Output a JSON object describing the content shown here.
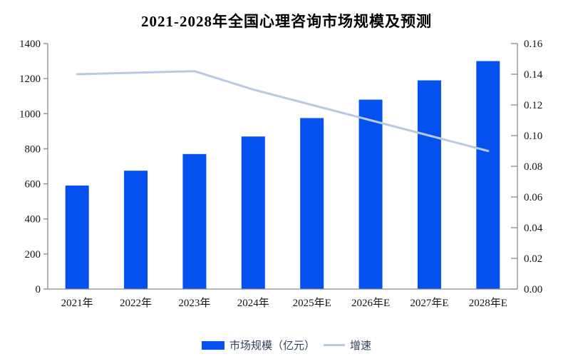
{
  "title": "2021-2028年全国心理咨询市场规模及预测",
  "legend": {
    "bar_label": "市场规模（亿元）",
    "line_label": "增速"
  },
  "colors": {
    "bar": "#0551f0",
    "line": "#b9c9e1",
    "axis": "#8a8a8a",
    "tick_text": "#121218",
    "legend_text": "#33415e",
    "title_text": "#000000"
  },
  "chart_data": {
    "type": "bar",
    "title": "2021-2028年全国心理咨询市场规模及预测",
    "categories": [
      "2021年",
      "2022年",
      "2023年",
      "2024年",
      "2025年E",
      "2026年E",
      "2027年E",
      "2028年E"
    ],
    "series": [
      {
        "name": "市场规模（亿元）",
        "type": "bar",
        "axis": "left",
        "values": [
          590,
          675,
          770,
          870,
          975,
          1080,
          1190,
          1300
        ]
      },
      {
        "name": "增速",
        "type": "line",
        "axis": "right",
        "values": [
          0.14,
          0.141,
          0.142,
          0.13,
          0.12,
          0.11,
          0.1,
          0.09
        ]
      }
    ],
    "left_axis": {
      "min": 0,
      "max": 1400,
      "step": 200
    },
    "right_axis": {
      "min": 0,
      "max": 0.16,
      "step": 0.02,
      "decimals": 2
    },
    "grid": false,
    "legend_position": "bottom"
  }
}
